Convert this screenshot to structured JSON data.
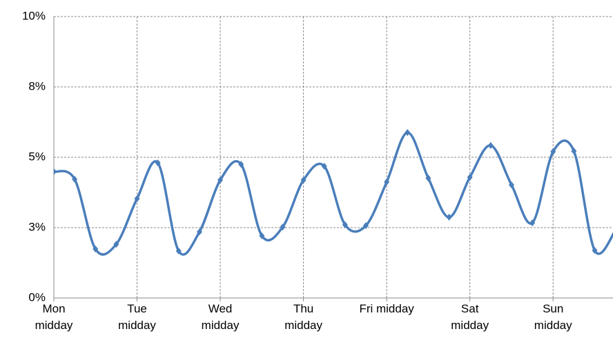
{
  "chart_data": {
    "type": "line",
    "x": [
      0,
      0.25,
      0.5,
      0.75,
      1,
      1.25,
      1.5,
      1.75,
      2,
      2.25,
      2.5,
      2.75,
      3,
      3.25,
      3.5,
      3.75,
      4,
      4.25,
      4.5,
      4.75,
      5,
      5.25,
      5.5,
      5.75,
      6,
      6.25,
      6.5,
      6.75
    ],
    "series": [
      {
        "color": "#4a7ebb",
        "values": [
          4.49,
          4.22,
          1.74,
          1.91,
          3.53,
          4.8,
          1.67,
          2.35,
          4.19,
          4.75,
          2.21,
          2.52,
          4.19,
          4.68,
          2.6,
          2.57,
          4.12,
          5.88,
          4.26,
          2.87,
          4.29,
          5.42,
          4.02,
          2.67,
          5.2,
          5.22,
          1.69,
          2.4
        ]
      }
    ],
    "xlim": [
      0,
      6.72
    ],
    "xticks": [
      {
        "value": 0,
        "label": "Mon midday"
      },
      {
        "value": 1,
        "label": "Tue midday"
      },
      {
        "value": 2,
        "label": "Wed midday"
      },
      {
        "value": 3,
        "label": "Thu midday"
      },
      {
        "value": 4,
        "label": "Fri midday"
      },
      {
        "value": 5,
        "label": "Sat midday"
      },
      {
        "value": 6,
        "label": "Sun midday"
      }
    ],
    "ylim": [
      0,
      10
    ],
    "yticks": [
      {
        "value": 0,
        "label": "0%"
      },
      {
        "value": 2.5,
        "label": "3%"
      },
      {
        "value": 5,
        "label": "5%"
      },
      {
        "value": 7.5,
        "label": "8%"
      },
      {
        "value": 10,
        "label": "10%"
      }
    ],
    "grid": true
  }
}
